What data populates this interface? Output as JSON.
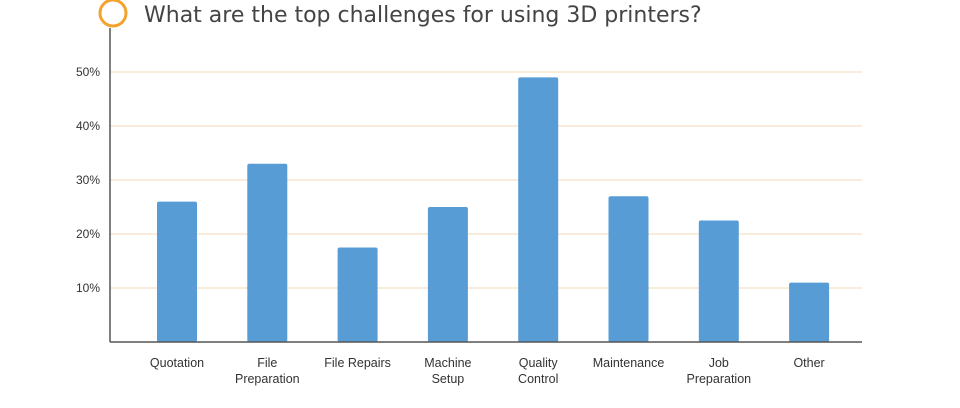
{
  "chart_data": {
    "type": "bar",
    "title": "What are the top challenges for using 3D printers?",
    "categories": [
      [
        "Quotation"
      ],
      [
        "File",
        "Preparation"
      ],
      [
        "File Repairs"
      ],
      [
        "Machine",
        "Setup"
      ],
      [
        "Quality",
        "Control"
      ],
      [
        "Maintenance"
      ],
      [
        "Job",
        "Preparation"
      ],
      [
        "Other"
      ]
    ],
    "values": [
      26,
      33,
      17.5,
      25,
      49,
      27,
      22.5,
      11
    ],
    "yticks": [
      10,
      20,
      30,
      40,
      50
    ],
    "ytick_labels": [
      "10%",
      "20%",
      "30%",
      "40%",
      "50%"
    ],
    "ylim": [
      0,
      50
    ],
    "xlabel": "",
    "ylabel": "",
    "grid": true,
    "colors": {
      "bar": "#579cd5",
      "grid": "#f8e6cf",
      "axis": "#555555",
      "title_marker": "#f4a22e"
    }
  }
}
